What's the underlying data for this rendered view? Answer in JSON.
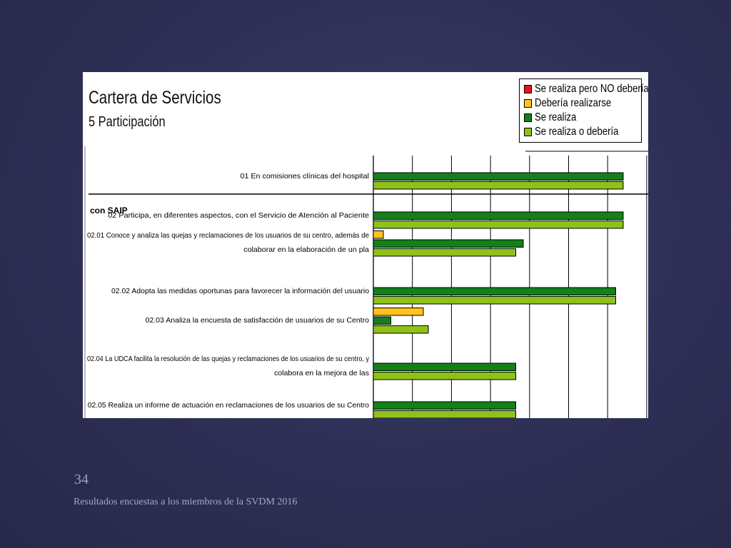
{
  "slide": {
    "number": "34",
    "footer": "Resultados encuestas a los miembros de la SVDM 2016"
  },
  "colors": {
    "slide_background": "#2f3057",
    "red": "#e8141b",
    "yellow": "#ffc31e",
    "dark_green": "#13801b",
    "light_green": "#8ec219"
  },
  "chart_data": {
    "type": "bar",
    "orientation": "horizontal",
    "title": "Cartera de Servicios",
    "subtitle": "5 Participación",
    "group_label": "con SAIP",
    "legend_position": "top-right",
    "legend": [
      {
        "name": "Se realiza pero NO debería",
        "color": "#e8141b"
      },
      {
        "name": "Debería realizarse",
        "color": "#ffc31e"
      },
      {
        "name": "Se realiza",
        "color": "#13801b"
      },
      {
        "name": "Se realiza o debería",
        "color": "#8ec219"
      }
    ],
    "grid": true,
    "xlim": [
      0,
      100
    ],
    "categories": [
      [
        "01 En comisiones clínicas del hospital"
      ],
      [
        "02 Participa, en diferentes aspectos, con el Servicio de Atención al Paciente"
      ],
      [
        "02.01 Conoce y analiza las quejas y reclamaciones de los usuarios de su centro, además de",
        "colaborar en la elaboración de un pla"
      ],
      [
        "02.02 Adopta las medidas oportunas para favorecer la información del usuario"
      ],
      [
        "02.03 Analiza la encuesta de satisfacción de usuarios de su Centro"
      ],
      [
        "02.04 La UDCA facilita la resolución de las quejas y reclamaciones de los usuarios de su centro, y",
        "colabora en la mejora de las"
      ],
      [
        "02.05 Realiza un informe de actuación en reclamaciones de los usuarios de su Centro"
      ]
    ],
    "series": [
      {
        "name": "Se realiza pero NO debería",
        "color": "#e8141b",
        "values": [
          0,
          0,
          0,
          0,
          0,
          0,
          0
        ]
      },
      {
        "name": "Debería realizarse",
        "color": "#ffc31e",
        "values": [
          0,
          0,
          4,
          0,
          20,
          0,
          0
        ]
      },
      {
        "name": "Se realiza",
        "color": "#13801b",
        "values": [
          100,
          100,
          60,
          97,
          7,
          57,
          57
        ]
      },
      {
        "name": "Se realiza o debería",
        "color": "#8ec219",
        "values": [
          100,
          100,
          57,
          97,
          22,
          57,
          57
        ]
      }
    ]
  }
}
